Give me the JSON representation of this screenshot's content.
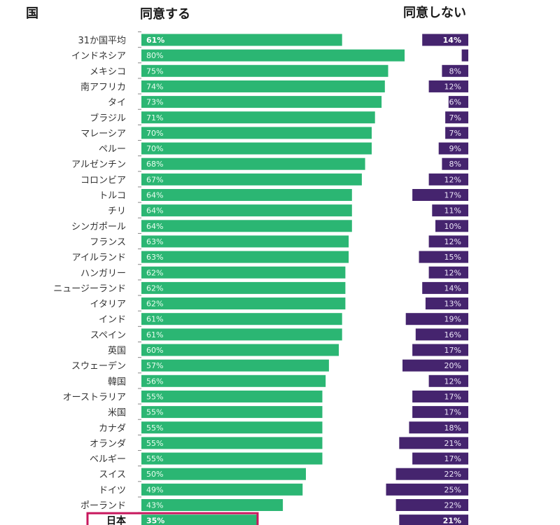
{
  "headers": {
    "country": "国",
    "agree": "同意する",
    "disagree": "同意しない"
  },
  "colors": {
    "agree": "#2bb673",
    "disagree": "#45246e",
    "highlight": "#c8175d"
  },
  "chart_data": {
    "type": "bar",
    "orientation": "horizontal",
    "title": "",
    "categories": [
      "31か国平均",
      "インドネシア",
      "メキシコ",
      "南アフリカ",
      "タイ",
      "ブラジル",
      "マレーシア",
      "ペルー",
      "アルゼンチン",
      "コロンビア",
      "トルコ",
      "チリ",
      "シンガポール",
      "フランス",
      "アイルランド",
      "ハンガリー",
      "ニュージーランド",
      "イタリア",
      "インド",
      "スペイン",
      "英国",
      "スウェーデン",
      "韓国",
      "オーストラリア",
      "米国",
      "カナダ",
      "オランダ",
      "ベルギー",
      "スイス",
      "ドイツ",
      "ポーランド",
      "日本"
    ],
    "series": [
      {
        "name": "同意する",
        "values": [
          61,
          80,
          75,
          74,
          73,
          71,
          70,
          70,
          68,
          67,
          64,
          64,
          64,
          63,
          63,
          62,
          62,
          62,
          61,
          61,
          60,
          57,
          56,
          55,
          55,
          55,
          55,
          55,
          50,
          49,
          43,
          35
        ],
        "labels": [
          "61%",
          "80%",
          "75%",
          "74%",
          "73%",
          "71%",
          "70%",
          "70%",
          "68%",
          "67%",
          "64%",
          "64%",
          "64%",
          "63%",
          "63%",
          "62%",
          "62%",
          "62%",
          "61%",
          "61%",
          "60%",
          "57%",
          "56%",
          "55%",
          "55%",
          "55%",
          "55%",
          "55%",
          "50%",
          "49%",
          "43%",
          "35%"
        ]
      },
      {
        "name": "同意しない",
        "values": [
          14,
          2,
          8,
          12,
          6,
          7,
          7,
          9,
          8,
          12,
          17,
          11,
          10,
          12,
          15,
          12,
          14,
          13,
          19,
          16,
          17,
          20,
          12,
          17,
          17,
          18,
          21,
          17,
          22,
          25,
          22,
          21
        ],
        "labels": [
          "14%",
          "",
          "8%",
          "12%",
          "6%",
          "7%",
          "7%",
          "9%",
          "8%",
          "12%",
          "17%",
          "11%",
          "10%",
          "12%",
          "15%",
          "12%",
          "14%",
          "13%",
          "19%",
          "16%",
          "17%",
          "20%",
          "12%",
          "17%",
          "17%",
          "18%",
          "21%",
          "17%",
          "22%",
          "25%",
          "22%",
          "21%"
        ]
      }
    ],
    "bold_rows": [
      "31か国平均",
      "日本"
    ],
    "highlighted_row": "日本",
    "xlabel": "",
    "ylabel": "国",
    "xlim": [
      0,
      100
    ],
    "legend": "none",
    "grid": false
  }
}
